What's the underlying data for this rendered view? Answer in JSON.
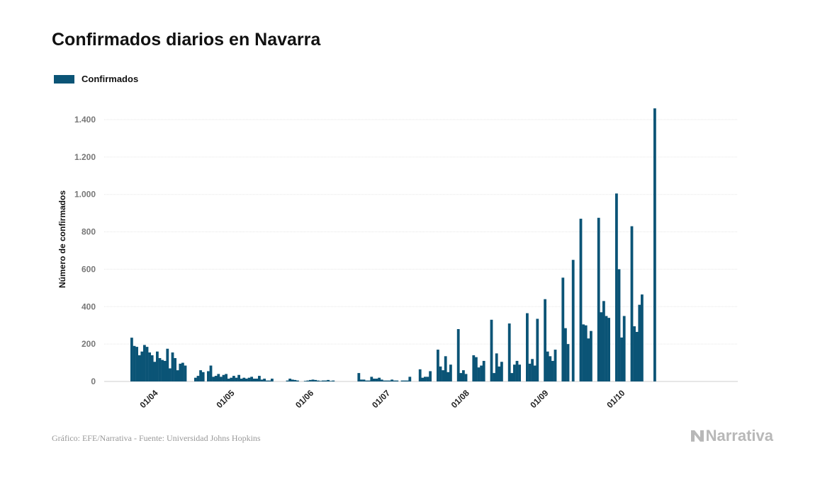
{
  "title": "Confirmados diarios en Navarra",
  "legend": {
    "label": "Confirmados",
    "color": "#0b5476"
  },
  "footer": "Gráfico: EFE/Narrativa - Fuente: Universidad Johns Hopkins",
  "brand": "Narrativa",
  "chart_data": {
    "type": "bar",
    "ylabel": "Número de confirmados",
    "ylim": [
      0,
      1550
    ],
    "yticks": [
      0,
      200,
      400,
      600,
      800,
      1000,
      1200,
      1400
    ],
    "ytick_labels": [
      "0",
      "200",
      "400",
      "600",
      "800",
      "1.000",
      "1.200",
      "1.400"
    ],
    "grid": true,
    "legend_position": "top-left",
    "x_start_date": "2020-03-26",
    "xticks": [
      {
        "label": "01/04",
        "date": "2020-04-01"
      },
      {
        "label": "01/05",
        "date": "2020-05-01"
      },
      {
        "label": "01/06",
        "date": "2020-06-01"
      },
      {
        "label": "01/07",
        "date": "2020-07-01"
      },
      {
        "label": "01/08",
        "date": "2020-08-01"
      },
      {
        "label": "01/09",
        "date": "2020-09-01"
      },
      {
        "label": "01/10",
        "date": "2020-10-01"
      }
    ],
    "series": [
      {
        "name": "Confirmados",
        "color": "#0b5476",
        "values": [
          234,
          190,
          185,
          140,
          160,
          195,
          185,
          155,
          140,
          105,
          160,
          125,
          115,
          110,
          175,
          70,
          155,
          125,
          60,
          95,
          100,
          85,
          0,
          0,
          0,
          20,
          30,
          60,
          50,
          0,
          55,
          85,
          25,
          30,
          40,
          25,
          35,
          40,
          15,
          20,
          30,
          20,
          35,
          15,
          20,
          15,
          20,
          25,
          15,
          15,
          30,
          10,
          15,
          5,
          5,
          15,
          0,
          0,
          0,
          0,
          0,
          5,
          15,
          10,
          8,
          5,
          0,
          0,
          3,
          5,
          8,
          10,
          8,
          5,
          3,
          5,
          5,
          8,
          3,
          5,
          0,
          0,
          0,
          0,
          0,
          0,
          0,
          0,
          0,
          45,
          10,
          10,
          5,
          5,
          25,
          15,
          15,
          20,
          10,
          5,
          5,
          5,
          10,
          5,
          5,
          0,
          5,
          5,
          5,
          25,
          0,
          0,
          0,
          65,
          20,
          25,
          25,
          55,
          0,
          0,
          170,
          80,
          60,
          135,
          50,
          90,
          0,
          0,
          280,
          45,
          60,
          40,
          0,
          0,
          140,
          130,
          75,
          85,
          110,
          0,
          0,
          330,
          45,
          150,
          80,
          105,
          0,
          0,
          310,
          45,
          90,
          110,
          90,
          0,
          0,
          365,
          95,
          120,
          85,
          335,
          0,
          0,
          440,
          160,
          135,
          110,
          170,
          0,
          0,
          555,
          285,
          200,
          0,
          650,
          0,
          0,
          870,
          305,
          300,
          230,
          270,
          0,
          0,
          875,
          370,
          430,
          350,
          340,
          0,
          0,
          1005,
          600,
          235,
          350,
          0,
          0,
          830,
          295,
          265,
          410,
          465,
          0,
          0,
          0,
          0,
          1460
        ]
      }
    ]
  }
}
